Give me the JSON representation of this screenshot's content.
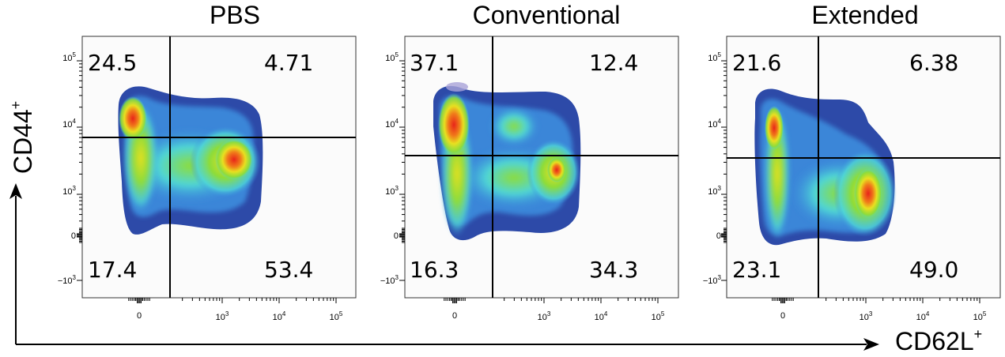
{
  "chart_data": [
    {
      "type": "density",
      "title": "PBS",
      "x_ticks": [
        "0",
        "10^3",
        "10^4",
        "10^5"
      ],
      "y_ticks": [
        "-10^3",
        "0",
        "10^3",
        "10^4",
        "10^5"
      ],
      "quadrants": {
        "upper_left": "24.5",
        "upper_right": "4.71",
        "lower_left": "17.4",
        "lower_right": "53.4"
      }
    },
    {
      "type": "density",
      "title": "Conventional",
      "x_ticks": [
        "0",
        "10^3",
        "10^4",
        "10^5"
      ],
      "y_ticks": [
        "-10^3",
        "0",
        "10^3",
        "10^4",
        "10^5"
      ],
      "quadrants": {
        "upper_left": "37.1",
        "upper_right": "12.4",
        "lower_left": "16.3",
        "lower_right": "34.3"
      }
    },
    {
      "type": "density",
      "title": "Extended",
      "x_ticks": [
        "0",
        "10^3",
        "10^4",
        "10^5"
      ],
      "y_ticks": [
        "-10^3",
        "0",
        "10^3",
        "10^4",
        "10^5"
      ],
      "quadrants": {
        "upper_left": "21.6",
        "upper_right": "6.38",
        "lower_left": "23.1",
        "lower_right": "49.0"
      }
    }
  ],
  "axes": {
    "ylabel": "CD44",
    "ylabel_sup": "+",
    "xlabel": "CD62L",
    "xlabel_sup": "+"
  },
  "colors": {
    "density_low": "#2d3d99",
    "density_mid_low": "#3a8fe0",
    "density_mid": "#4fd6d6",
    "density_mid_high": "#8ddc3a",
    "density_high": "#e8e020",
    "density_peak": "#e8241a"
  }
}
